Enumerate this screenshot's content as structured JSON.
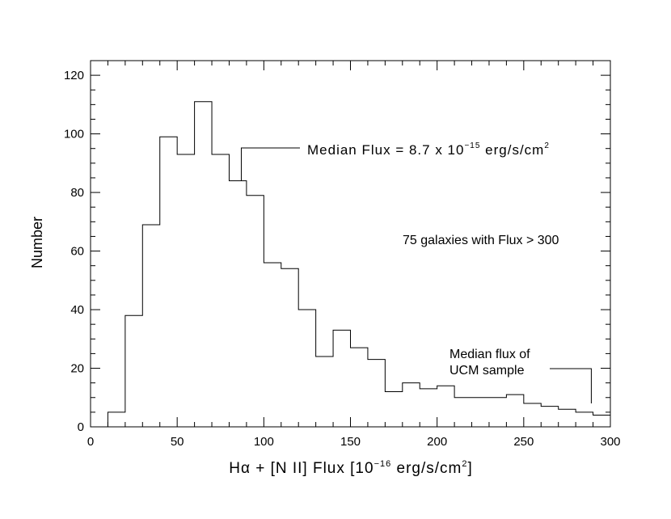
{
  "chart_data": {
    "type": "histogram",
    "xlabel_parts": {
      "pre": "Hα + [N II] Flux [10",
      "exp": "−16",
      "mid": " erg/s/cm",
      "exp2": "2",
      "post": "]"
    },
    "ylabel": "Number",
    "xlim": [
      0,
      300
    ],
    "ylim": [
      0,
      125
    ],
    "x_ticks": [
      0,
      50,
      100,
      150,
      200,
      250,
      300
    ],
    "y_ticks": [
      0,
      20,
      40,
      60,
      80,
      100,
      120
    ],
    "bin_width": 10,
    "bins": [
      {
        "x0": 10,
        "x1": 20,
        "count": 5
      },
      {
        "x0": 20,
        "x1": 30,
        "count": 38
      },
      {
        "x0": 30,
        "x1": 40,
        "count": 69
      },
      {
        "x0": 40,
        "x1": 50,
        "count": 99
      },
      {
        "x0": 50,
        "x1": 60,
        "count": 93
      },
      {
        "x0": 60,
        "x1": 70,
        "count": 111
      },
      {
        "x0": 70,
        "x1": 80,
        "count": 93
      },
      {
        "x0": 80,
        "x1": 90,
        "count": 84
      },
      {
        "x0": 90,
        "x1": 100,
        "count": 79
      },
      {
        "x0": 100,
        "x1": 110,
        "count": 56
      },
      {
        "x0": 110,
        "x1": 120,
        "count": 54
      },
      {
        "x0": 120,
        "x1": 130,
        "count": 40
      },
      {
        "x0": 130,
        "x1": 140,
        "count": 24
      },
      {
        "x0": 140,
        "x1": 150,
        "count": 33
      },
      {
        "x0": 150,
        "x1": 160,
        "count": 27
      },
      {
        "x0": 160,
        "x1": 170,
        "count": 23
      },
      {
        "x0": 170,
        "x1": 180,
        "count": 12
      },
      {
        "x0": 180,
        "x1": 190,
        "count": 15
      },
      {
        "x0": 190,
        "x1": 200,
        "count": 13
      },
      {
        "x0": 200,
        "x1": 210,
        "count": 14
      },
      {
        "x0": 210,
        "x1": 220,
        "count": 10
      },
      {
        "x0": 220,
        "x1": 230,
        "count": 10
      },
      {
        "x0": 230,
        "x1": 240,
        "count": 10
      },
      {
        "x0": 240,
        "x1": 250,
        "count": 11
      },
      {
        "x0": 250,
        "x1": 260,
        "count": 8
      },
      {
        "x0": 260,
        "x1": 270,
        "count": 7
      },
      {
        "x0": 270,
        "x1": 280,
        "count": 6
      },
      {
        "x0": 280,
        "x1": 290,
        "count": 5
      },
      {
        "x0": 290,
        "x1": 300,
        "count": 4
      }
    ],
    "annotations": {
      "median_flux": {
        "marker_x": 87,
        "marker_y_range": [
          84,
          95
        ],
        "text_parts": {
          "pre": "Median Flux = 8.7 x 10",
          "exp": "−15",
          "mid": " erg/s/cm",
          "exp2": "2"
        }
      },
      "galaxies_note": {
        "text": "75 galaxies with Flux > 300"
      },
      "ucm_median": {
        "marker_x": 289,
        "marker_y_range": [
          8,
          20
        ],
        "line1": "Median flux of",
        "line2": "UCM sample"
      }
    }
  }
}
